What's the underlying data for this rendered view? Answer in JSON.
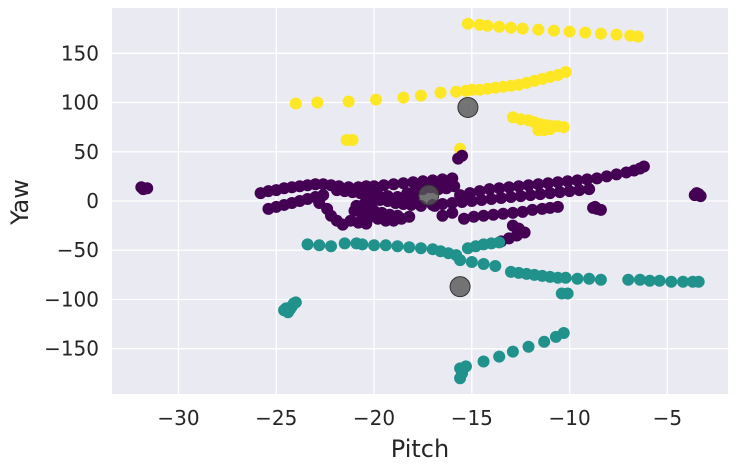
{
  "chart_data": {
    "type": "scatter",
    "title": "",
    "xlabel": "Pitch",
    "ylabel": "Yaw",
    "xlim": [
      -33.4,
      -1.9
    ],
    "ylim": [
      -196,
      196
    ],
    "xticks": [
      -30,
      -25,
      -20,
      -15,
      -10,
      -5
    ],
    "yticks": [
      -150,
      -100,
      -50,
      0,
      50,
      100,
      150
    ],
    "xtick_labels": [
      "−30",
      "−25",
      "−20",
      "−15",
      "−10",
      "−5"
    ],
    "ytick_labels": [
      "−150",
      "−100",
      "−50",
      "0",
      "50",
      "100",
      "150"
    ],
    "grid": true,
    "legend": "none",
    "colors": {
      "background": "#eaeaf2",
      "grid": "#ffffff",
      "cluster_0": "#440154",
      "cluster_1": "#21918c",
      "cluster_2": "#fde725",
      "centroid": "#555555"
    },
    "series": [
      {
        "cluster": 2,
        "points": [
          [
            -15.2,
            180
          ],
          [
            -14.6,
            179
          ],
          [
            -14.2,
            178
          ],
          [
            -13.6,
            177
          ],
          [
            -13.0,
            176
          ],
          [
            -12.4,
            175
          ],
          [
            -11.6,
            174
          ],
          [
            -10.8,
            173
          ],
          [
            -10.0,
            172
          ],
          [
            -9.2,
            171
          ],
          [
            -8.4,
            170
          ],
          [
            -7.6,
            169
          ],
          [
            -6.9,
            168
          ],
          [
            -6.5,
            167
          ],
          [
            -24.0,
            99
          ],
          [
            -22.9,
            100
          ],
          [
            -21.3,
            101
          ],
          [
            -19.9,
            103
          ],
          [
            -18.5,
            105
          ],
          [
            -17.6,
            107
          ],
          [
            -16.6,
            110
          ],
          [
            -15.8,
            111
          ],
          [
            -15.3,
            112
          ],
          [
            -15.0,
            113
          ],
          [
            -14.6,
            113
          ],
          [
            -14.2,
            114
          ],
          [
            -13.8,
            115
          ],
          [
            -13.4,
            116
          ],
          [
            -13.0,
            117
          ],
          [
            -12.6,
            118
          ],
          [
            -12.2,
            120
          ],
          [
            -11.8,
            122
          ],
          [
            -11.4,
            124
          ],
          [
            -11.0,
            126
          ],
          [
            -10.6,
            128
          ],
          [
            -10.2,
            131
          ],
          [
            -12.9,
            85
          ],
          [
            -12.5,
            83
          ],
          [
            -12.1,
            82
          ],
          [
            -11.8,
            80
          ],
          [
            -11.5,
            78
          ],
          [
            -11.2,
            77
          ],
          [
            -10.9,
            76
          ],
          [
            -10.6,
            76
          ],
          [
            -10.3,
            75
          ],
          [
            -11.6,
            72
          ],
          [
            -11.3,
            72
          ],
          [
            -11.0,
            73
          ],
          [
            -21.4,
            62
          ],
          [
            -21.1,
            62
          ],
          [
            -15.6,
            53
          ]
        ]
      },
      {
        "cluster": 0,
        "points": [
          [
            -31.9,
            14
          ],
          [
            -31.6,
            13
          ],
          [
            -31.8,
            12
          ],
          [
            -15.7,
            43
          ],
          [
            -15.5,
            46
          ],
          [
            -25.8,
            8
          ],
          [
            -25.4,
            10
          ],
          [
            -25.0,
            11
          ],
          [
            -24.6,
            13
          ],
          [
            -24.2,
            14
          ],
          [
            -23.8,
            15
          ],
          [
            -23.4,
            16
          ],
          [
            -23.0,
            17
          ],
          [
            -22.6,
            17
          ],
          [
            -22.2,
            16
          ],
          [
            -21.8,
            15
          ],
          [
            -21.3,
            14
          ],
          [
            -20.8,
            14
          ],
          [
            -20.4,
            15
          ],
          [
            -20.0,
            15
          ],
          [
            -19.5,
            16
          ],
          [
            -19.0,
            17
          ],
          [
            -18.5,
            18
          ],
          [
            -18.0,
            19
          ],
          [
            -17.5,
            20
          ],
          [
            -17.0,
            21
          ],
          [
            -16.5,
            22
          ],
          [
            -16.0,
            23
          ],
          [
            -21.9,
            11
          ],
          [
            -21.5,
            10
          ],
          [
            -21.1,
            9
          ],
          [
            -20.7,
            8
          ],
          [
            -20.3,
            7
          ],
          [
            -19.8,
            6
          ],
          [
            -19.3,
            5
          ],
          [
            -18.8,
            4
          ],
          [
            -18.4,
            3
          ],
          [
            -18.0,
            2
          ],
          [
            -25.4,
            -8
          ],
          [
            -25.0,
            -6
          ],
          [
            -24.6,
            -4
          ],
          [
            -24.2,
            -2
          ],
          [
            -23.8,
            0
          ],
          [
            -23.4,
            2
          ],
          [
            -23.0,
            4
          ],
          [
            -22.6,
            6
          ],
          [
            -22.8,
            -2
          ],
          [
            -22.4,
            -8
          ],
          [
            -22.2,
            -15
          ],
          [
            -21.9,
            -20
          ],
          [
            -21.6,
            -24
          ],
          [
            -21.0,
            -10
          ],
          [
            -20.6,
            -13
          ],
          [
            -20.2,
            -16
          ],
          [
            -19.8,
            -18
          ],
          [
            -19.4,
            -20
          ],
          [
            -19.0,
            -20
          ],
          [
            -18.6,
            -18
          ],
          [
            -18.2,
            -16
          ],
          [
            -20.9,
            -5
          ],
          [
            -20.5,
            -3
          ],
          [
            -20.1,
            -1
          ],
          [
            -19.7,
            1
          ],
          [
            -19.3,
            0
          ],
          [
            -18.9,
            -2
          ],
          [
            -18.5,
            -3
          ],
          [
            -18.1,
            -4
          ],
          [
            -17.6,
            -5
          ],
          [
            -17.0,
            -4
          ],
          [
            -16.5,
            -3
          ],
          [
            -16.0,
            -2
          ],
          [
            -15.5,
            -1
          ],
          [
            -15.0,
            0
          ],
          [
            -14.5,
            1
          ],
          [
            -14.0,
            2
          ],
          [
            -13.5,
            3
          ],
          [
            -13.0,
            4
          ],
          [
            -12.5,
            5
          ],
          [
            -12.0,
            6
          ],
          [
            -11.5,
            7
          ],
          [
            -11.0,
            8
          ],
          [
            -10.5,
            9
          ],
          [
            -10.0,
            10
          ],
          [
            -9.5,
            11
          ],
          [
            -9.0,
            12
          ],
          [
            -15.6,
            6
          ],
          [
            -15.1,
            8
          ],
          [
            -14.6,
            10
          ],
          [
            -14.1,
            12
          ],
          [
            -13.6,
            13
          ],
          [
            -13.1,
            14
          ],
          [
            -12.6,
            15
          ],
          [
            -12.1,
            16
          ],
          [
            -11.6,
            17
          ],
          [
            -11.1,
            18
          ],
          [
            -10.6,
            19
          ],
          [
            -10.1,
            20
          ],
          [
            -9.6,
            21
          ],
          [
            -9.1,
            22
          ],
          [
            -8.6,
            23
          ],
          [
            -8.1,
            25
          ],
          [
            -7.6,
            27
          ],
          [
            -7.1,
            29
          ],
          [
            -6.7,
            31
          ],
          [
            -6.4,
            33
          ],
          [
            -6.2,
            35
          ],
          [
            -16.7,
            12
          ],
          [
            -16.3,
            13
          ],
          [
            -15.9,
            15
          ],
          [
            -16.9,
            -5
          ],
          [
            -16.5,
            -15
          ],
          [
            -16.0,
            -12
          ],
          [
            -15.4,
            -18
          ],
          [
            -14.9,
            -16
          ],
          [
            -14.4,
            -15
          ],
          [
            -13.9,
            -14
          ],
          [
            -13.4,
            -13
          ],
          [
            -12.9,
            -12
          ],
          [
            -12.4,
            -11
          ],
          [
            -11.9,
            -9
          ],
          [
            -11.4,
            -8
          ],
          [
            -11.0,
            -7
          ],
          [
            -10.6,
            -6
          ],
          [
            -12.9,
            -25
          ],
          [
            -12.6,
            -28
          ],
          [
            -12.3,
            -32
          ],
          [
            -12.7,
            -35
          ],
          [
            -13.1,
            -38
          ],
          [
            -13.5,
            -41
          ],
          [
            -8.8,
            -7
          ],
          [
            -8.6,
            -8
          ],
          [
            -8.4,
            -9
          ],
          [
            -8.7,
            -6
          ],
          [
            -3.6,
            6
          ],
          [
            -3.4,
            7
          ],
          [
            -3.3,
            5
          ],
          [
            -3.5,
            8
          ],
          [
            -20.4,
            -8
          ],
          [
            -20.0,
            -10
          ],
          [
            -19.6,
            -12
          ],
          [
            -19.2,
            -14
          ],
          [
            -18.8,
            -15
          ],
          [
            -21.2,
            -20
          ],
          [
            -20.8,
            -22
          ],
          [
            -20.4,
            -23
          ],
          [
            -18.3,
            8
          ],
          [
            -17.9,
            10
          ],
          [
            -17.5,
            12
          ],
          [
            -17.1,
            14
          ],
          [
            -16.7,
            16
          ]
        ]
      },
      {
        "cluster": 1,
        "points": [
          [
            -23.4,
            -44
          ],
          [
            -22.8,
            -45
          ],
          [
            -22.2,
            -46
          ],
          [
            -21.5,
            -43
          ],
          [
            -20.9,
            -43
          ],
          [
            -20.6,
            -44
          ],
          [
            -20.0,
            -45
          ],
          [
            -19.4,
            -45
          ],
          [
            -18.8,
            -46
          ],
          [
            -18.2,
            -47
          ],
          [
            -17.6,
            -48
          ],
          [
            -17.0,
            -49
          ],
          [
            -16.6,
            -51
          ],
          [
            -16.2,
            -53
          ],
          [
            -15.8,
            -55
          ],
          [
            -15.2,
            -48
          ],
          [
            -14.8,
            -46
          ],
          [
            -14.4,
            -44
          ],
          [
            -14.0,
            -43
          ],
          [
            -13.6,
            -42
          ],
          [
            -15.6,
            -60
          ],
          [
            -15.0,
            -62
          ],
          [
            -14.4,
            -64
          ],
          [
            -13.8,
            -66
          ],
          [
            -13.0,
            -72
          ],
          [
            -12.6,
            -73
          ],
          [
            -12.2,
            -74
          ],
          [
            -11.8,
            -75
          ],
          [
            -11.4,
            -76
          ],
          [
            -11.0,
            -77
          ],
          [
            -10.6,
            -78
          ],
          [
            -10.2,
            -78
          ],
          [
            -9.6,
            -79
          ],
          [
            -9.0,
            -79
          ],
          [
            -8.4,
            -80
          ],
          [
            -7.0,
            -80
          ],
          [
            -6.4,
            -80
          ],
          [
            -5.9,
            -81
          ],
          [
            -5.4,
            -81
          ],
          [
            -4.8,
            -82
          ],
          [
            -4.2,
            -82
          ],
          [
            -3.7,
            -82
          ],
          [
            -3.4,
            -82
          ],
          [
            -10.4,
            -94
          ],
          [
            -10.1,
            -94
          ],
          [
            -24.5,
            -109
          ],
          [
            -24.3,
            -110
          ],
          [
            -24.6,
            -111
          ],
          [
            -24.2,
            -107
          ],
          [
            -24.1,
            -104
          ],
          [
            -24.0,
            -103
          ],
          [
            -24.4,
            -113
          ],
          [
            -15.6,
            -170
          ],
          [
            -15.5,
            -175
          ],
          [
            -15.6,
            -180
          ],
          [
            -15.3,
            -168
          ],
          [
            -14.4,
            -163
          ],
          [
            -13.6,
            -158
          ],
          [
            -12.9,
            -153
          ],
          [
            -12.1,
            -148
          ],
          [
            -11.3,
            -143
          ],
          [
            -10.7,
            -138
          ],
          [
            -10.3,
            -134
          ]
        ]
      }
    ],
    "centroids": [
      [
        -15.2,
        95
      ],
      [
        -17.2,
        6
      ],
      [
        -15.6,
        -87
      ]
    ]
  }
}
